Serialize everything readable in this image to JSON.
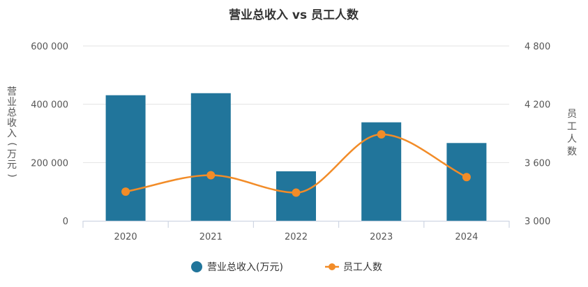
{
  "chart_data": {
    "type": "bar",
    "title": "营业总收入 vs 员工人数",
    "categories": [
      "2020",
      "2021",
      "2022",
      "2023",
      "2024"
    ],
    "series": [
      {
        "name": "营业总收入(万元)",
        "type": "bar",
        "axis": "left",
        "color": "#21759b",
        "values": [
          431000,
          438000,
          170000,
          338000,
          267000
        ]
      },
      {
        "name": "员工人数",
        "type": "line",
        "axis": "right",
        "smooth": true,
        "color": "#f28c28",
        "values": [
          3300,
          3470,
          3290,
          3890,
          3450
        ]
      }
    ],
    "y_left": {
      "label": "营业总收入(万元)",
      "range": [
        0,
        600000
      ],
      "ticks": [
        "0",
        "200 000",
        "400 000",
        "600 000"
      ]
    },
    "y_right": {
      "label": "员工人数",
      "range": [
        3000,
        4800
      ],
      "ticks": [
        "3 000",
        "3 600",
        "4 200",
        "4 800"
      ]
    },
    "grid": true,
    "legend_position": "bottom"
  }
}
